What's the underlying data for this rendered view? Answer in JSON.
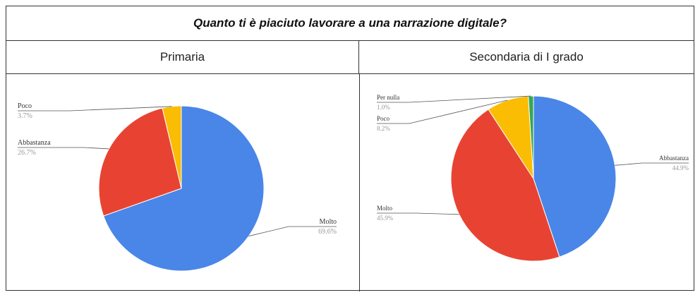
{
  "title": "Quanto ti è piaciuto lavorare a una narrazione digitale?",
  "chart_data": [
    {
      "type": "pie",
      "title": "Primaria",
      "slices": [
        {
          "label": "Molto",
          "value": 69.6,
          "pct": "69.6%",
          "color": "#4a86e8"
        },
        {
          "label": "Abbastanza",
          "value": 26.7,
          "pct": "26.7%",
          "color": "#e84332"
        },
        {
          "label": "Poco",
          "value": 3.7,
          "pct": "3.7%",
          "color": "#fbbc04"
        }
      ]
    },
    {
      "type": "pie",
      "title": "Secondaria di I grado",
      "slices": [
        {
          "label": "Abbastanza",
          "value": 44.9,
          "pct": "44.9%",
          "color": "#4a86e8"
        },
        {
          "label": "Molto",
          "value": 45.9,
          "pct": "45.9%",
          "color": "#e84332"
        },
        {
          "label": "Poco",
          "value": 8.2,
          "pct": "8.2%",
          "color": "#fbbc04"
        },
        {
          "label": "Per nulla",
          "value": 1.0,
          "pct": "1.0%",
          "color": "#34a853"
        }
      ]
    }
  ]
}
